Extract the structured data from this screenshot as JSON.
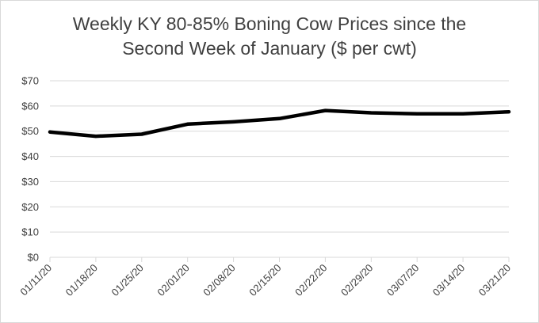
{
  "chart_data": {
    "type": "line",
    "title_lines": [
      "Weekly KY 80-85% Boning Cow Prices since the",
      "Second Week of January ($ per cwt)"
    ],
    "x": [
      "01/11/20",
      "01/18/20",
      "01/25/20",
      "02/01/20",
      "02/08/20",
      "02/15/20",
      "02/22/20",
      "02/29/20",
      "03/07/20",
      "03/14/20",
      "03/21/20"
    ],
    "series": [
      {
        "values": [
          49.7,
          48.0,
          48.8,
          52.8,
          53.7,
          55.0,
          58.2,
          57.3,
          56.9,
          56.9,
          57.7
        ]
      }
    ],
    "ylim": [
      0,
      70
    ],
    "yticks": [
      0,
      10,
      20,
      30,
      40,
      50,
      60,
      70
    ],
    "ytick_labels": [
      "$0",
      "$10",
      "$20",
      "$30",
      "$40",
      "$50",
      "$60",
      "$70"
    ],
    "grid": true,
    "line_color": "#000000",
    "grid_color": "#d9d9d9"
  }
}
